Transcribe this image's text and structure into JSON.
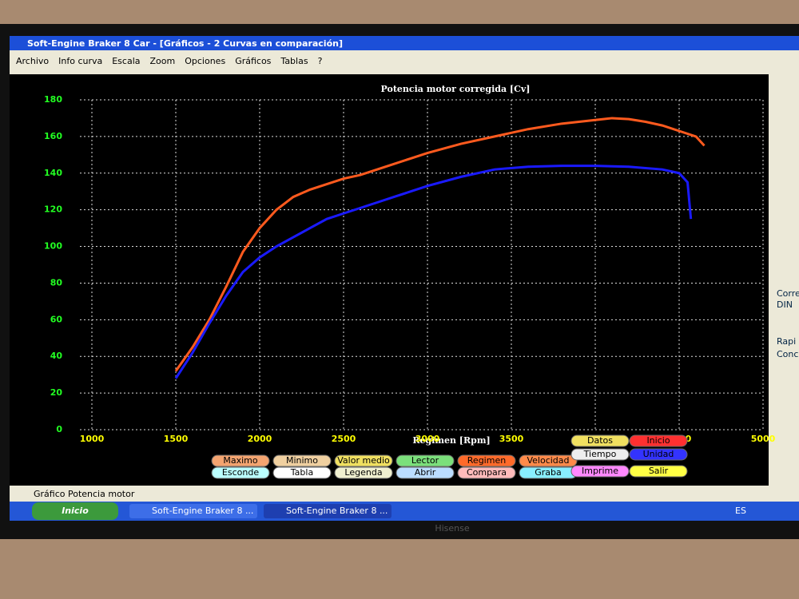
{
  "window": {
    "title": "Soft-Engine Braker 8 Car - [Gráficos - 2 Curvas en comparación]",
    "menu": [
      "Archivo",
      "Info curva",
      "Escala",
      "Zoom",
      "Opciones",
      "Gráficos",
      "Tablas",
      "?"
    ]
  },
  "chart_data": {
    "type": "line",
    "title": "Potencia motor corregida [Cv]",
    "x_label": "Regimen [Rpm]",
    "xlim": [
      1000,
      5000
    ],
    "ylim": [
      0,
      180
    ],
    "xticks": [
      1000,
      1500,
      2000,
      2500,
      3000,
      3500,
      4000,
      4500,
      5000
    ],
    "yticks": [
      0,
      20,
      40,
      60,
      80,
      100,
      120,
      140,
      160,
      180
    ],
    "grid": true,
    "series": [
      {
        "color": "#ff5a1e",
        "x": [
          1500,
          1600,
          1700,
          1800,
          1900,
          2000,
          2100,
          2200,
          2300,
          2400,
          2500,
          2600,
          2700,
          2800,
          2900,
          3000,
          3200,
          3400,
          3600,
          3800,
          4000,
          4100,
          4200,
          4300,
          4400,
          4500,
          4600,
          4650
        ],
        "values": [
          32,
          45,
          60,
          78,
          97,
          110,
          120,
          127,
          131,
          134,
          137,
          139,
          142,
          145,
          148,
          151,
          156,
          160,
          164,
          167,
          169,
          170,
          169.5,
          168,
          166,
          163,
          160,
          155
        ]
      },
      {
        "color": "#1a1aff",
        "x": [
          1500,
          1600,
          1700,
          1800,
          1900,
          2000,
          2100,
          2200,
          2300,
          2400,
          2500,
          2600,
          2700,
          2800,
          2900,
          3000,
          3200,
          3400,
          3600,
          3800,
          4000,
          4200,
          4400,
          4500,
          4550,
          4570
        ],
        "values": [
          28,
          42,
          58,
          73,
          86,
          94,
          100,
          105,
          110,
          115,
          118,
          121,
          124,
          127,
          130,
          133,
          138,
          142,
          143.5,
          144,
          144,
          143.5,
          142,
          140,
          135,
          115
        ]
      }
    ]
  },
  "buttons": [
    "Maximo",
    "Minimo",
    "Valor medio",
    "Lector",
    "Regimen",
    "Velocidad",
    "Datos",
    "Inicio",
    "Esconde",
    "Tabla",
    "Legenda",
    "Abrir",
    "Compara",
    "Graba",
    "Tiempo",
    "Unidad",
    "Imprime",
    "Salir"
  ],
  "side": [
    "Corre",
    "DIN",
    "Rapi",
    "Conc"
  ],
  "status": "Gráfico Potencia motor",
  "taskbar": {
    "start": "Inicio",
    "tasks": [
      "Soft-Engine Braker 8 ...",
      "Soft-Engine Braker 8 ..."
    ],
    "lang": "ES"
  },
  "brand": "Hisense"
}
